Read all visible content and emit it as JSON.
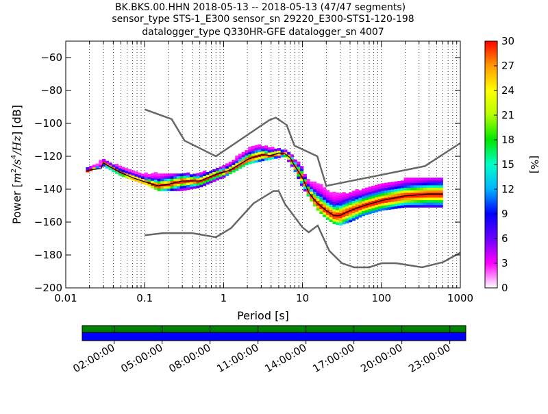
{
  "chart_data": {
    "type": "heatmap",
    "title": [
      "BK.BKS.00.HHN   2018-05-13 -- 2018-05-13  (47/47 segments)",
      "sensor_type STS-1_E300 sensor_sn 29220_E300-STS1-120-198",
      "datalogger_type Q330HR-GFE datalogger_sn 4007"
    ],
    "xlabel": "Period [s]",
    "ylabel_parts": [
      "Power [",
      "m",
      "2",
      "/",
      "s",
      "4",
      "/",
      "Hz",
      "] [dB]"
    ],
    "x_scale": "log",
    "xlim": [
      0.01,
      1000
    ],
    "ylim": [
      -200,
      -50
    ],
    "x_ticks": [
      {
        "value": 0.01,
        "label": "0.01"
      },
      {
        "value": 0.1,
        "label": "0.1"
      },
      {
        "value": 1,
        "label": "1"
      },
      {
        "value": 10,
        "label": "10"
      },
      {
        "value": 100,
        "label": "100"
      },
      {
        "value": 1000,
        "label": "1000"
      }
    ],
    "y_ticks": [
      {
        "value": -60,
        "label": "−60"
      },
      {
        "value": -80,
        "label": "−80"
      },
      {
        "value": -100,
        "label": "−100"
      },
      {
        "value": -120,
        "label": "−120"
      },
      {
        "value": -140,
        "label": "−140"
      },
      {
        "value": -160,
        "label": "−160"
      },
      {
        "value": -180,
        "label": "−180"
      },
      {
        "value": -200,
        "label": "−200"
      }
    ],
    "grid": "dotted vertical at every log-decade subdivision",
    "colorbar": {
      "label": "[%]",
      "range": [
        0,
        30
      ],
      "ticks": [
        {
          "value": 0,
          "label": "0"
        },
        {
          "value": 3,
          "label": "3"
        },
        {
          "value": 6,
          "label": "6"
        },
        {
          "value": 9,
          "label": "9"
        },
        {
          "value": 12,
          "label": "12"
        },
        {
          "value": 15,
          "label": "15"
        },
        {
          "value": 18,
          "label": "18"
        },
        {
          "value": 21,
          "label": "21"
        },
        {
          "value": 24,
          "label": "24"
        },
        {
          "value": 27,
          "label": "27"
        },
        {
          "value": 30,
          "label": "30"
        }
      ],
      "colors": [
        "#ffffff",
        "#ff00ff",
        "#6a00ff",
        "#0000ff",
        "#00b4ff",
        "#00ffc8",
        "#00e600",
        "#b4ff00",
        "#ffff00",
        "#ff9a00",
        "#ff0000"
      ]
    },
    "noise_model_high": {
      "name": "New High Noise Model",
      "points": [
        [
          0.1,
          -91.5
        ],
        [
          0.22,
          -97.4
        ],
        [
          0.32,
          -110.5
        ],
        [
          0.8,
          -120
        ],
        [
          3.8,
          -98
        ],
        [
          4.6,
          -96.5
        ],
        [
          6.3,
          -101
        ],
        [
          7.9,
          -113.5
        ],
        [
          15.4,
          -120
        ],
        [
          20,
          -138
        ],
        [
          354.8,
          -126
        ],
        [
          1000,
          -112
        ]
      ]
    },
    "noise_model_low": {
      "name": "New Low Noise Model",
      "points": [
        [
          0.1,
          -168
        ],
        [
          0.17,
          -166.7
        ],
        [
          0.4,
          -166.7
        ],
        [
          0.8,
          -169.2
        ],
        [
          1.24,
          -163.7
        ],
        [
          2.4,
          -148.6
        ],
        [
          4.3,
          -141.1
        ],
        [
          5.0,
          -141.1
        ],
        [
          6.0,
          -149
        ],
        [
          10.0,
          -163.3
        ],
        [
          12.0,
          -166.2
        ],
        [
          15.6,
          -162.1
        ],
        [
          21.9,
          -177.5
        ],
        [
          31.6,
          -185
        ],
        [
          45,
          -187.5
        ],
        [
          70,
          -187.5
        ],
        [
          101,
          -185
        ],
        [
          154,
          -185
        ],
        [
          328,
          -187.5
        ],
        [
          600,
          -184.4
        ],
        [
          1000,
          -178.6
        ]
      ]
    },
    "psd_mode": {
      "name": "mode",
      "points": [
        [
          0.018,
          -129
        ],
        [
          0.022,
          -128
        ],
        [
          0.028,
          -127.5
        ],
        [
          0.03,
          -124
        ],
        [
          0.035,
          -126
        ],
        [
          0.05,
          -130
        ],
        [
          0.07,
          -133
        ],
        [
          0.1,
          -135.5
        ],
        [
          0.15,
          -138
        ],
        [
          0.2,
          -137
        ],
        [
          0.3,
          -135
        ],
        [
          0.5,
          -135
        ],
        [
          0.8,
          -131
        ],
        [
          1.2,
          -128.5
        ],
        [
          2,
          -122
        ],
        [
          3,
          -119
        ],
        [
          4,
          -119.5
        ],
        [
          5,
          -118
        ],
        [
          6,
          -118.5
        ],
        [
          7,
          -121
        ],
        [
          8,
          -126
        ],
        [
          10,
          -133
        ],
        [
          12,
          -142
        ],
        [
          15,
          -148
        ],
        [
          20,
          -153
        ],
        [
          25,
          -156
        ],
        [
          30,
          -156
        ],
        [
          40,
          -153
        ],
        [
          60,
          -150
        ],
        [
          100,
          -147
        ],
        [
          200,
          -144
        ],
        [
          400,
          -143
        ],
        [
          600,
          -143
        ]
      ]
    },
    "psd_spread": {
      "upper": [
        [
          0.018,
          -128
        ],
        [
          0.03,
          -122.5
        ],
        [
          0.05,
          -127
        ],
        [
          0.1,
          -131
        ],
        [
          0.2,
          -131
        ],
        [
          0.5,
          -131
        ],
        [
          1,
          -127
        ],
        [
          2,
          -116
        ],
        [
          2.5,
          -114
        ],
        [
          3.5,
          -114.5
        ],
        [
          5,
          -116
        ],
        [
          6,
          -116
        ],
        [
          8,
          -122
        ],
        [
          10,
          -127
        ],
        [
          11,
          -134
        ],
        [
          12,
          -135
        ],
        [
          14,
          -136
        ],
        [
          17,
          -138
        ],
        [
          20,
          -141
        ],
        [
          25,
          -143
        ],
        [
          40,
          -142.5
        ],
        [
          60,
          -140
        ],
        [
          100,
          -137
        ],
        [
          200,
          -134.5
        ],
        [
          600,
          -133
        ]
      ],
      "lower": [
        [
          0.018,
          -130
        ],
        [
          0.03,
          -126
        ],
        [
          0.05,
          -132
        ],
        [
          0.1,
          -137
        ],
        [
          0.15,
          -141
        ],
        [
          0.3,
          -141
        ],
        [
          0.5,
          -139
        ],
        [
          1,
          -133
        ],
        [
          2,
          -125
        ],
        [
          3,
          -123
        ],
        [
          5,
          -121
        ],
        [
          6,
          -120
        ],
        [
          8,
          -129
        ],
        [
          10,
          -139
        ],
        [
          15,
          -152
        ],
        [
          20,
          -158
        ],
        [
          25,
          -161
        ],
        [
          30,
          -162
        ],
        [
          40,
          -160
        ],
        [
          60,
          -156
        ],
        [
          100,
          -153
        ],
        [
          200,
          -151
        ],
        [
          600,
          -151
        ]
      ]
    }
  },
  "timeline": {
    "labels": [
      "02:00:00",
      "05:00:00",
      "08:00:00",
      "11:00:00",
      "14:00:00",
      "17:00:00",
      "20:00:00",
      "23:00:00"
    ],
    "label_hours": [
      2,
      5,
      8,
      11,
      14,
      17,
      20,
      23
    ],
    "data_bar_color": "#008000",
    "coverage_bar_color": "#0000ff",
    "segment_hours": [
      0,
      2,
      5,
      8,
      11,
      14,
      17,
      20,
      23,
      24
    ]
  }
}
